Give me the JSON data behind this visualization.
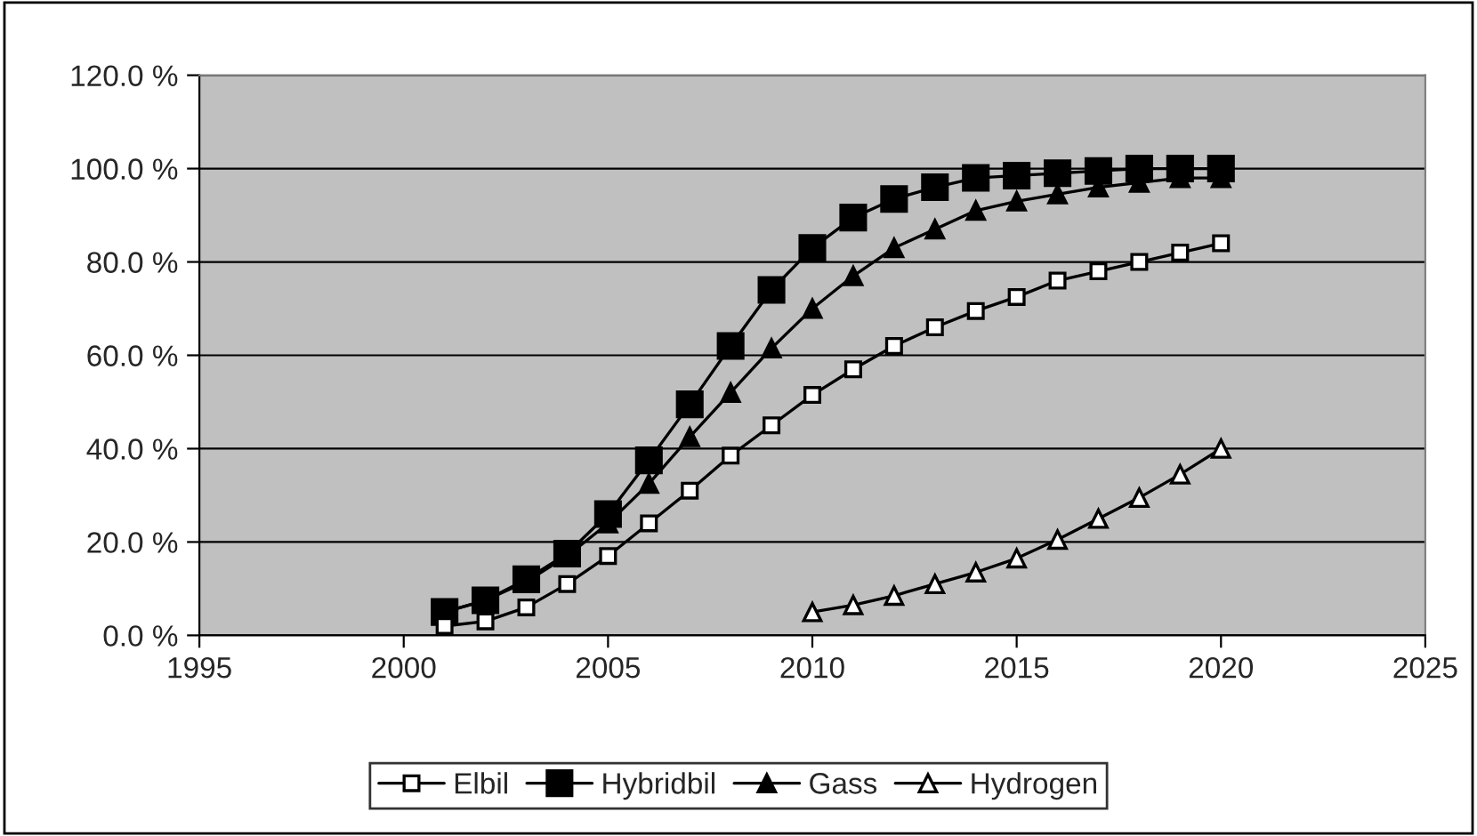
{
  "chart_data": {
    "type": "line",
    "xlim": [
      1995,
      2025
    ],
    "xticks": [
      1995,
      2000,
      2005,
      2010,
      2015,
      2020,
      2025
    ],
    "ylim": [
      0,
      120
    ],
    "yticks": [
      {
        "value": 0,
        "label": "0.0 %"
      },
      {
        "value": 20,
        "label": "20.0 %"
      },
      {
        "value": 40,
        "label": "40.0 %"
      },
      {
        "value": 60,
        "label": "60.0 %"
      },
      {
        "value": 80,
        "label": "80.0 %"
      },
      {
        "value": 100,
        "label": "100.0 %"
      },
      {
        "value": 120,
        "label": "120.0 %"
      }
    ],
    "grid": "y",
    "legend": "bottom",
    "line_style": "solid",
    "series": [
      {
        "name": "Elbil",
        "color": "#000000",
        "marker": "square",
        "x": [
          2001,
          2002,
          2003,
          2004,
          2005,
          2006,
          2007,
          2008,
          2009,
          2010,
          2011,
          2012,
          2013,
          2014,
          2015,
          2016,
          2017,
          2018,
          2019,
          2020
        ],
        "values": [
          2,
          3,
          6,
          11,
          17,
          24,
          31,
          38.5,
          45,
          51.5,
          57,
          62,
          66,
          69.5,
          72.5,
          76,
          78,
          80,
          82,
          84
        ]
      },
      {
        "name": "Hybridbil",
        "color": "#000000",
        "marker": "square",
        "x": [
          2001,
          2002,
          2003,
          2004,
          2005,
          2006,
          2007,
          2008,
          2009,
          2010,
          2011,
          2012,
          2013,
          2014,
          2015,
          2016,
          2017,
          2018,
          2019,
          2020
        ],
        "values": [
          5,
          7.5,
          12,
          17.5,
          26,
          37.5,
          49.5,
          62,
          74,
          83,
          89.5,
          93.5,
          96,
          98,
          98.5,
          99,
          99.5,
          100,
          100,
          100
        ]
      },
      {
        "name": "Gass",
        "color": "#000000",
        "marker": "triangle",
        "x": [
          2001,
          2002,
          2003,
          2004,
          2005,
          2006,
          2007,
          2008,
          2009,
          2010,
          2011,
          2012,
          2013,
          2014,
          2015,
          2016,
          2017,
          2018,
          2019,
          2020
        ],
        "values": [
          5,
          7.5,
          11.5,
          17,
          24,
          32.5,
          42.5,
          52,
          61.5,
          70,
          77,
          83,
          87,
          91,
          93,
          94.5,
          96,
          97,
          98,
          98
        ]
      },
      {
        "name": "Hydrogen",
        "color": "#000000",
        "marker": "triangle",
        "x": [
          2010,
          2011,
          2012,
          2013,
          2014,
          2015,
          2016,
          2017,
          2018,
          2019,
          2020
        ],
        "values": [
          5,
          6.5,
          8.5,
          11,
          13.5,
          16.5,
          20.5,
          25,
          29.5,
          34.5,
          40
        ]
      }
    ]
  }
}
